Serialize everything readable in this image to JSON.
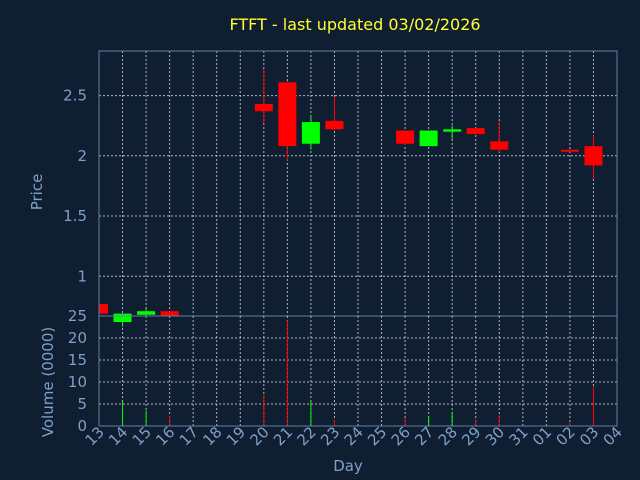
{
  "chart_data": {
    "type": "candlestick",
    "title": "FTFT - last updated 03/02/2026",
    "xlabel": "Day",
    "ylabel": "Price",
    "volume_label": "Volume (0000)",
    "x_ticks": [
      "13",
      "14",
      "15",
      "16",
      "17",
      "18",
      "19",
      "20",
      "21",
      "22",
      "23",
      "24",
      "25",
      "26",
      "27",
      "28",
      "29",
      "30",
      "31",
      "01",
      "02",
      "03",
      "04"
    ],
    "price_ticks": [
      1,
      1.5,
      2,
      2.5
    ],
    "price_ylim": [
      0.67,
      2.87
    ],
    "volume_ticks": [
      0,
      5,
      10,
      15,
      20,
      25
    ],
    "volume_ylim": [
      0,
      25
    ],
    "grid": true,
    "up_color": "#00ff00",
    "down_color": "#ff0000",
    "candles": [
      {
        "day": "13",
        "open": 0.77,
        "high": 0.77,
        "low": 0.69,
        "close": 0.69,
        "volume": 0
      },
      {
        "day": "14",
        "open": 0.62,
        "high": 0.69,
        "low": 0.58,
        "close": 0.69,
        "volume": 5.5
      },
      {
        "day": "15",
        "open": 0.68,
        "high": 0.73,
        "low": 0.66,
        "close": 0.71,
        "volume": 3.5
      },
      {
        "day": "16",
        "open": 0.71,
        "high": 0.71,
        "low": 0.67,
        "close": 0.67,
        "volume": 2.3
      },
      {
        "day": "20",
        "open": 2.43,
        "high": 2.72,
        "low": 2.27,
        "close": 2.37,
        "volume": 7.0
      },
      {
        "day": "21",
        "open": 2.61,
        "high": 2.62,
        "low": 1.96,
        "close": 2.08,
        "volume": 24.0
      },
      {
        "day": "22",
        "open": 2.1,
        "high": 2.34,
        "low": 2.05,
        "close": 2.28,
        "volume": 5.5
      },
      {
        "day": "23",
        "open": 2.29,
        "high": 2.49,
        "low": 2.21,
        "close": 2.22,
        "volume": 1.5
      },
      {
        "day": "26",
        "open": 2.21,
        "high": 2.21,
        "low": 2.09,
        "close": 2.1,
        "volume": 1.8
      },
      {
        "day": "27",
        "open": 2.08,
        "high": 2.21,
        "low": 2.08,
        "close": 2.21,
        "volume": 2.2
      },
      {
        "day": "28",
        "open": 2.2,
        "high": 2.25,
        "low": 2.14,
        "close": 2.22,
        "volume": 3.2
      },
      {
        "day": "29",
        "open": 2.23,
        "high": 2.23,
        "low": 2.18,
        "close": 2.18,
        "volume": 1.5
      },
      {
        "day": "30",
        "open": 2.12,
        "high": 2.29,
        "low": 2.03,
        "close": 2.05,
        "volume": 2.5
      },
      {
        "day": "02",
        "open": 2.05,
        "high": 2.05,
        "low": 2.03,
        "close": 2.04,
        "volume": 0.8
      },
      {
        "day": "03",
        "open": 2.08,
        "high": 2.17,
        "low": 1.81,
        "close": 1.92,
        "volume": 9.0
      }
    ]
  }
}
